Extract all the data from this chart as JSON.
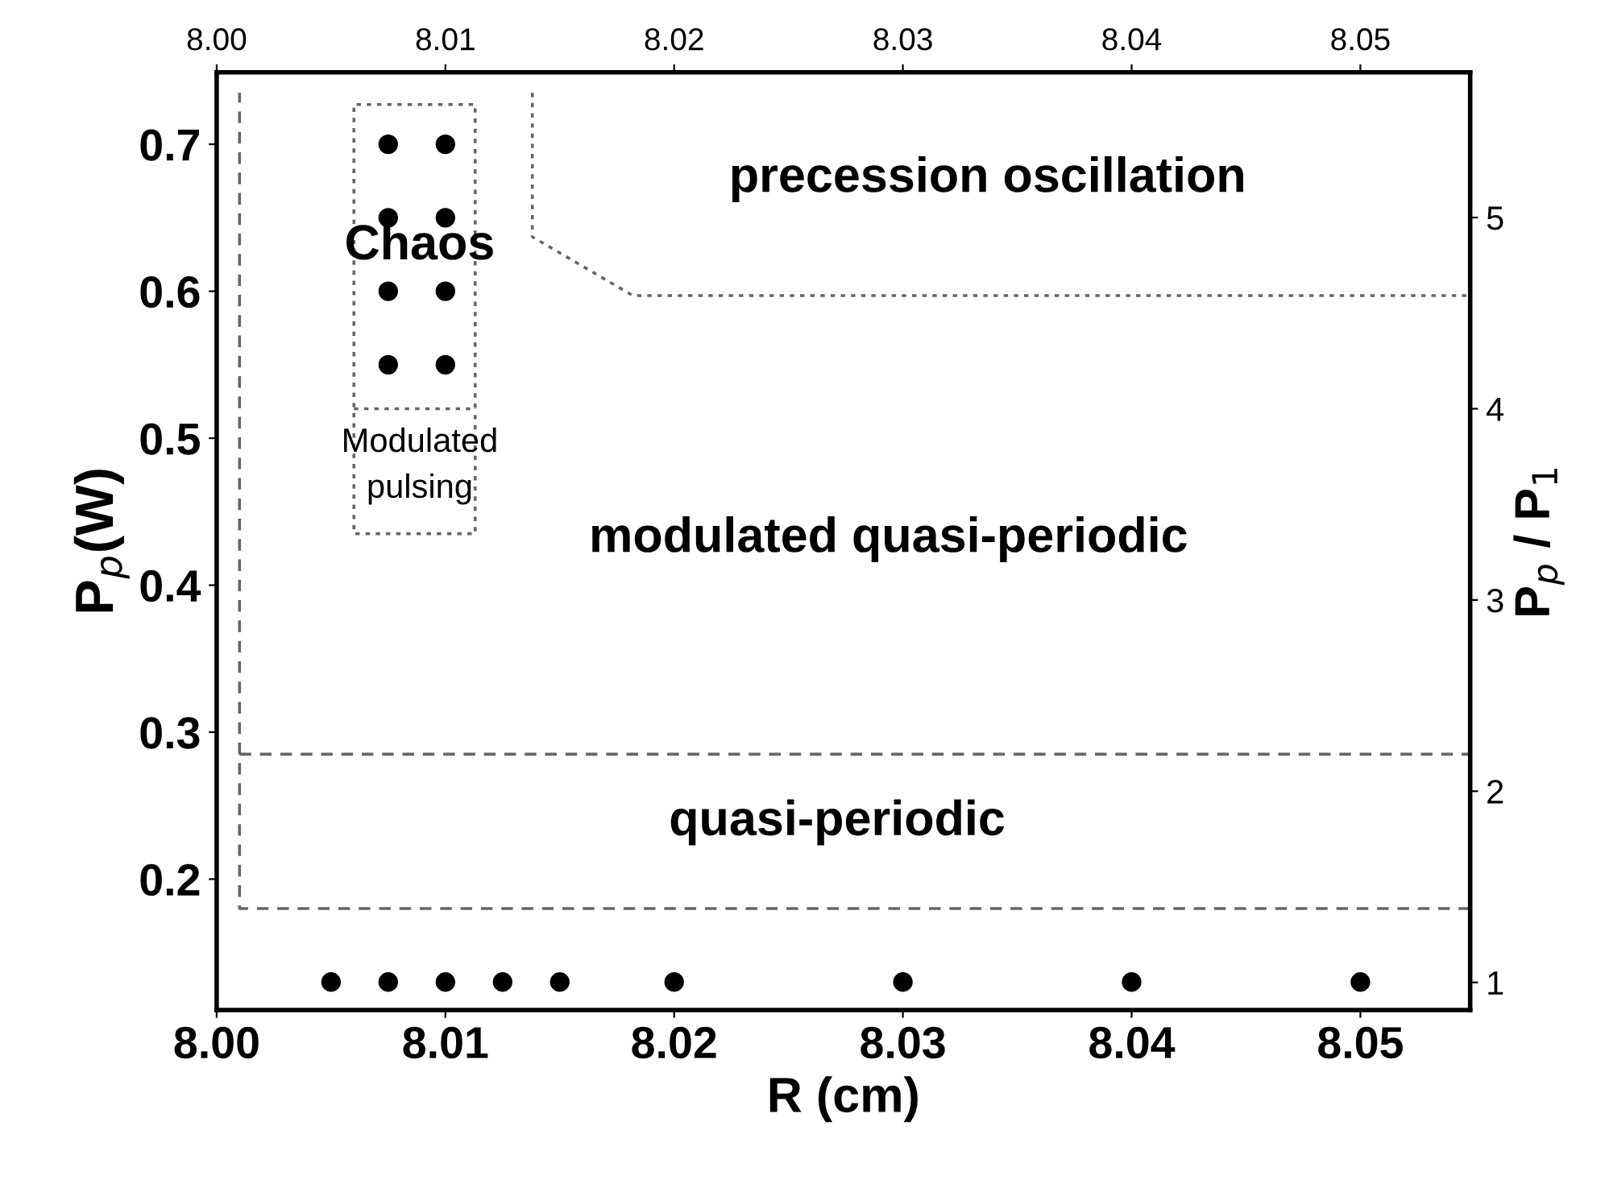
{
  "chart_data": {
    "type": "scatter",
    "xlabel": "R (cm)",
    "ylabel": "P$_{p}$(W)",
    "y2label": "P$_{p}$ / P$_{1}$",
    "xlim": [
      8.0,
      8.0548
    ],
    "xticks": [
      {
        "value": 8.0,
        "label": "8.00"
      },
      {
        "value": 8.01,
        "label": "8.01"
      },
      {
        "value": 8.02,
        "label": "8.02"
      },
      {
        "value": 8.03,
        "label": "8.03"
      },
      {
        "value": 8.04,
        "label": "8.04"
      },
      {
        "value": 8.05,
        "label": "8.05"
      }
    ],
    "x2lim": [
      8.0,
      8.0548
    ],
    "x2ticks": [
      {
        "value": 8.0,
        "label": "8.00"
      },
      {
        "value": 8.01,
        "label": "8.01"
      },
      {
        "value": 8.02,
        "label": "8.02"
      },
      {
        "value": 8.03,
        "label": "8.03"
      },
      {
        "value": 8.04,
        "label": "8.04"
      },
      {
        "value": 8.05,
        "label": "8.05"
      }
    ],
    "ylim": [
      0.111,
      0.749
    ],
    "yticks": [
      0.2,
      0.3,
      0.4,
      0.5,
      0.6,
      0.7
    ],
    "y2lim": [
      0.856,
      5.76
    ],
    "y2ticks": [
      1,
      2,
      3,
      4,
      5
    ],
    "grid": false,
    "legend": false,
    "series": [
      {
        "marker": "circle",
        "color": "#000000",
        "x": [
          8.005,
          8.0075,
          8.01,
          8.0125,
          8.015,
          8.02,
          8.03,
          8.04,
          8.05
        ],
        "values": [
          0.13,
          0.13,
          0.13,
          0.13,
          0.13,
          0.13,
          0.13,
          0.13,
          0.13
        ]
      },
      {
        "marker": "circle",
        "color": "#000000",
        "x": [
          8.0075,
          8.01,
          8.0075,
          8.01,
          8.0075,
          8.01,
          8.0075,
          8.01
        ],
        "values": [
          0.7,
          0.7,
          0.65,
          0.65,
          0.6,
          0.6,
          0.55,
          0.55
        ]
      },
      {
        "type": "line",
        "marker": "none",
        "color": "#666666",
        "line_style": "dashed",
        "x": [
          8.0548,
          8.001,
          8.001
        ],
        "values": [
          0.18,
          0.18,
          0.735
        ]
      },
      {
        "type": "line",
        "marker": "none",
        "color": "#666666",
        "line_style": "dashed",
        "x": [
          8.001,
          8.0548
        ],
        "values": [
          0.285,
          0.285
        ]
      },
      {
        "type": "line",
        "marker": "none",
        "color": "#666666",
        "line_style": "dotted",
        "x": [
          8.0138,
          8.0138,
          8.0182,
          8.0548
        ],
        "values": [
          0.735,
          0.637,
          0.597,
          0.597
        ]
      },
      {
        "type": "line",
        "marker": "none",
        "color": "#666666",
        "line_style": "dotted",
        "x": [
          8.006,
          8.0113,
          8.0113,
          8.006,
          8.006,
          8.0113,
          8.0113
        ],
        "values": [
          0.52,
          0.52,
          0.727,
          0.727,
          0.435,
          0.435,
          0.52
        ]
      }
    ],
    "annotations": [
      "precession oscillation",
      "Chaos",
      "Modulated\npulsing",
      "modulated quasi-periodic",
      "quasi-periodic"
    ]
  }
}
